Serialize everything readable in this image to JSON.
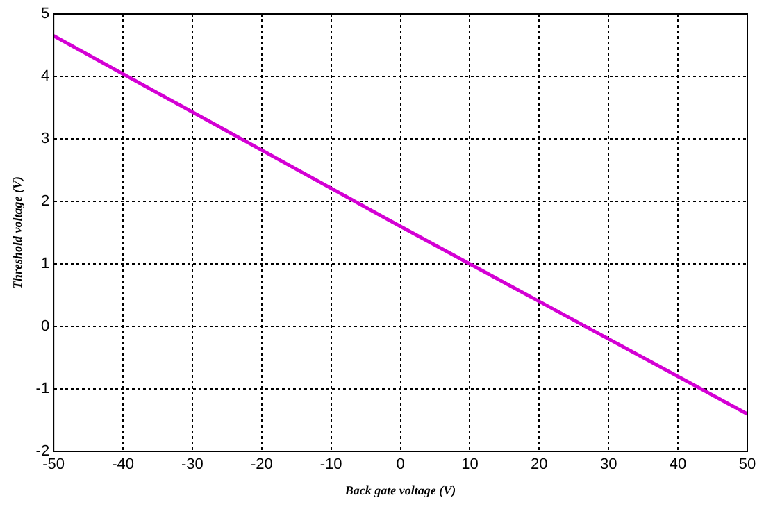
{
  "chart_data": {
    "type": "line",
    "xlabel": "Back gate voltage (V)",
    "ylabel": "Threshold voltage (V)",
    "x": [
      -50,
      0,
      50
    ],
    "series": [
      {
        "color": "#d400d4",
        "values": [
          4.65,
          1.6,
          -1.4
        ]
      }
    ],
    "xlim": [
      -50,
      50
    ],
    "xticks": [
      -50,
      -40,
      -30,
      -20,
      -10,
      0,
      10,
      20,
      30,
      40,
      50
    ],
    "ylim": [
      -2,
      5
    ],
    "yticks": [
      -2,
      -1,
      0,
      1,
      2,
      3,
      4,
      5
    ],
    "grid": true,
    "legend": false,
    "marker": "none",
    "line_style": "solid"
  }
}
